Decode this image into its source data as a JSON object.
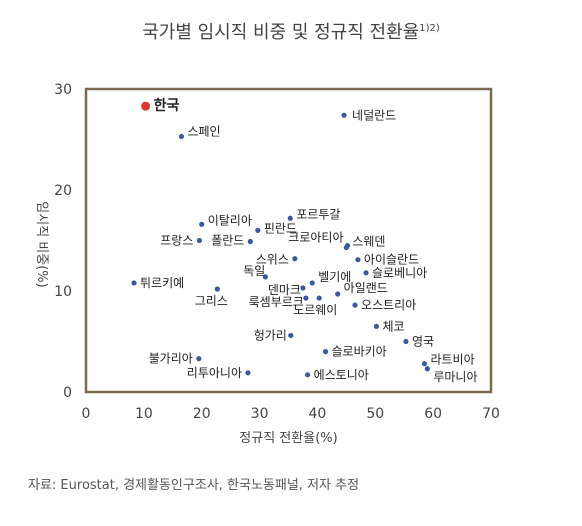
{
  "page": {
    "title": "국가별 임시직 비중 및 정규직 전환율",
    "title_footnote": "1)2)",
    "source": "자료: Eurostat, 경제활동인구조사, 한국노동패널, 저자 추정"
  },
  "chart_data": {
    "type": "scatter",
    "title": "국가별 임시직 비중 및 정규직 전환율",
    "xlabel": "정규직 전환율(%)",
    "ylabel": "임시직 비중(%)",
    "xlim": [
      0,
      70
    ],
    "ylim": [
      0,
      30
    ],
    "xticks": [
      0,
      10,
      20,
      30,
      40,
      50,
      60,
      70
    ],
    "yticks": [
      0,
      10,
      20,
      30
    ],
    "grid": false,
    "colors": {
      "point": "#3a5a9c",
      "highlight": "#d63a35",
      "frame": "#7a6a4f"
    },
    "points": [
      {
        "label": "한국",
        "x": 10.3,
        "y": 28.3,
        "highlight": true
      },
      {
        "label": "네덜란드",
        "x": 44.6,
        "y": 27.4
      },
      {
        "label": "스페인",
        "x": 16.5,
        "y": 25.3
      },
      {
        "label": "포르투갈",
        "x": 35.3,
        "y": 17.2
      },
      {
        "label": "이탈리아",
        "x": 20.0,
        "y": 16.6
      },
      {
        "label": "핀란드",
        "x": 29.7,
        "y": 16.0
      },
      {
        "label": "프랑스",
        "x": 19.6,
        "y": 15.0
      },
      {
        "label": "폴란드",
        "x": 28.4,
        "y": 14.9
      },
      {
        "label": "크로아티아",
        "x": 45.2,
        "y": 14.5
      },
      {
        "label": "스웨덴",
        "x": 45.0,
        "y": 14.3
      },
      {
        "label": "스위스",
        "x": 36.1,
        "y": 13.2
      },
      {
        "label": "아이슬란드",
        "x": 47.0,
        "y": 13.1
      },
      {
        "label": "슬로베니아",
        "x": 48.4,
        "y": 11.8
      },
      {
        "label": "독일",
        "x": 31.0,
        "y": 11.4
      },
      {
        "label": "튀르키예",
        "x": 8.3,
        "y": 10.8
      },
      {
        "label": "벨기에",
        "x": 39.1,
        "y": 10.8
      },
      {
        "label": "덴마크",
        "x": 37.5,
        "y": 10.3
      },
      {
        "label": "그리스",
        "x": 22.7,
        "y": 10.2
      },
      {
        "label": "아일랜드",
        "x": 43.5,
        "y": 9.7
      },
      {
        "label": "룩셈부르크",
        "x": 38.0,
        "y": 9.3
      },
      {
        "label": "노르웨이",
        "x": 40.3,
        "y": 9.3
      },
      {
        "label": "오스트리아",
        "x": 46.5,
        "y": 8.6
      },
      {
        "label": "체코",
        "x": 50.2,
        "y": 6.5
      },
      {
        "label": "헝가리",
        "x": 35.4,
        "y": 5.6
      },
      {
        "label": "영국",
        "x": 55.3,
        "y": 5.0
      },
      {
        "label": "슬로바키아",
        "x": 41.4,
        "y": 4.0
      },
      {
        "label": "불가리아",
        "x": 19.5,
        "y": 3.3
      },
      {
        "label": "라트비아",
        "x": 58.5,
        "y": 2.8
      },
      {
        "label": "루마니아",
        "x": 59.0,
        "y": 2.3
      },
      {
        "label": "리투아니아",
        "x": 28.0,
        "y": 1.9
      },
      {
        "label": "에스토니아",
        "x": 38.3,
        "y": 1.7
      }
    ]
  }
}
